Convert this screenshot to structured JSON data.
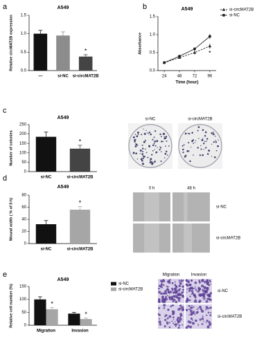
{
  "chart_data": [
    {
      "type": "bar",
      "panel": "a",
      "title": "A549",
      "ylabel": "Relative circMAT2B expression",
      "categories": [
        "—",
        "si-NC",
        "si-circMAT2B"
      ],
      "values": [
        1.0,
        0.95,
        0.38
      ],
      "errors": [
        0.09,
        0.1,
        0.05
      ],
      "colors": [
        "#111111",
        "#8c8c8c",
        "#444444"
      ],
      "ylim": [
        0,
        1.5
      ],
      "yticks": [
        {
          "value": 0,
          "label": "0.0"
        },
        {
          "value": 0.5,
          "label": "0.5"
        },
        {
          "value": 1,
          "label": "1.0"
        },
        {
          "value": 1.5,
          "label": "1.5"
        }
      ],
      "annotations": [
        {
          "text": "*",
          "category": "si-circMAT2B"
        }
      ]
    },
    {
      "type": "line",
      "panel": "b",
      "title": "A549",
      "xlabel": "Time (hour)",
      "ylabel": "Absorbance",
      "x": [
        24,
        48,
        72,
        96
      ],
      "xlim": [
        14,
        106
      ],
      "xticks": [
        24,
        48,
        72,
        96
      ],
      "ylim": [
        0,
        1.5
      ],
      "yticks": [
        {
          "value": 0,
          "label": "0.0"
        },
        {
          "value": 0.5,
          "label": "0.5"
        },
        {
          "value": 1,
          "label": "1.0"
        },
        {
          "value": 1.5,
          "label": "1.5"
        }
      ],
      "legend": "right",
      "series": [
        {
          "name": "si-circMAT2B",
          "color": "#222222",
          "dashed": true,
          "marker": "triangle",
          "values": [
            0.22,
            0.36,
            0.5,
            0.68
          ],
          "errors": [
            0.02,
            0.03,
            0.05,
            0.07
          ]
        },
        {
          "name": "si-NC",
          "color": "#222222",
          "dashed": false,
          "marker": "circle",
          "values": [
            0.22,
            0.4,
            0.6,
            0.95
          ],
          "errors": [
            0.02,
            0.04,
            0.05,
            0.07
          ]
        }
      ],
      "annotations": [
        {
          "text": "*",
          "x": 96,
          "series": "si-circMAT2B"
        }
      ]
    },
    {
      "type": "bar",
      "panel": "c",
      "title": "A549",
      "ylabel": "Number of colonies",
      "categories": [
        "si-NC",
        "si-circMAT2B"
      ],
      "values": [
        185,
        122
      ],
      "errors": [
        25,
        18
      ],
      "colors": [
        "#111111",
        "#444444"
      ],
      "ylim": [
        0,
        250
      ],
      "yticks": [
        0,
        50,
        100,
        150,
        200,
        250
      ],
      "annotations": [
        {
          "text": "*",
          "category": "si-circMAT2B"
        }
      ],
      "images": {
        "kind": "plate",
        "columns": [
          "si-NC",
          "si-circMAT2B"
        ]
      }
    },
    {
      "type": "bar",
      "panel": "d",
      "title": "A549",
      "ylabel": "Wound width ( % of 0 h)",
      "categories": [
        "si-NC",
        "si-circMAT2B"
      ],
      "values": [
        32,
        56
      ],
      "errors": [
        6,
        5
      ],
      "colors": [
        "#111111",
        "#a6a6a6"
      ],
      "ylim": [
        0,
        80
      ],
      "yticks": [
        0,
        20,
        40,
        60,
        80
      ],
      "annotations": [
        {
          "text": "*",
          "category": "si-circMAT2B"
        }
      ],
      "images": {
        "kind": "wound",
        "columns": [
          "0 h",
          "48 h"
        ],
        "rows": [
          "si-NC",
          "si-circMAT2B"
        ]
      }
    },
    {
      "type": "bar",
      "panel": "e",
      "title": "A549",
      "ylabel": "Relative cell number (%)",
      "categories": [
        "Migration",
        "Invasion"
      ],
      "series": [
        {
          "name": "si-NC",
          "color": "#111111",
          "values": [
            100,
            45
          ],
          "errors": [
            10,
            5
          ]
        },
        {
          "name": "si-circMAT2B",
          "color": "#a6a6a6",
          "values": [
            62,
            24
          ],
          "errors": [
            6,
            4
          ]
        }
      ],
      "ylim": [
        0,
        150
      ],
      "yticks": [
        0,
        50,
        100,
        150
      ],
      "annotations": [
        {
          "text": "*",
          "category": "Migration",
          "series": "si-circMAT2B"
        },
        {
          "text": "*",
          "category": "Invasion",
          "series": "si-circMAT2B"
        }
      ],
      "images": {
        "kind": "well",
        "columns": [
          "Migration",
          "Invasion"
        ],
        "rows": [
          "si-NC",
          "si-circMAT2B"
        ]
      }
    }
  ]
}
